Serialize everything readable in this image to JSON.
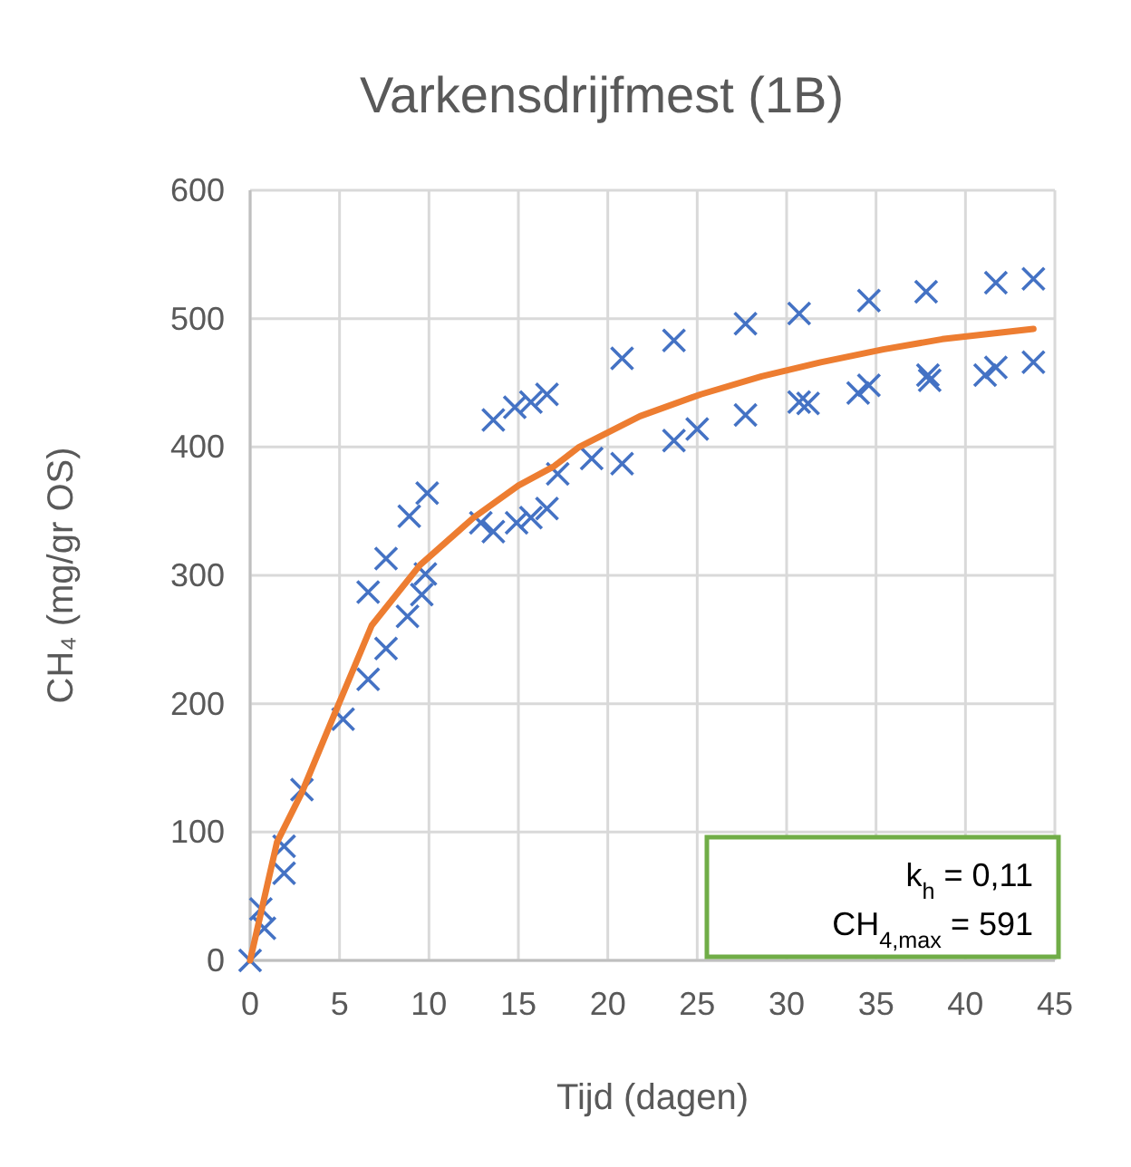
{
  "chart_data": {
    "type": "scatter",
    "title": "Varkensdrijfmest (1B)",
    "xlabel": "Tijd (dagen)",
    "ylabel": "CH₄ (mg/gr OS)",
    "xlim": [
      0,
      45
    ],
    "xticks": [
      0,
      5,
      10,
      15,
      20,
      25,
      30,
      35,
      40,
      45
    ],
    "ylim": [
      0,
      600
    ],
    "yticks": [
      0,
      100,
      200,
      300,
      400,
      500,
      600
    ],
    "grid": true,
    "annotations": [
      "k$_{h}$ = 0,11",
      "CH$_{4,max}$ = 591"
    ],
    "series": [
      {
        "marker": "cross",
        "color": "#4472c4",
        "x": [
          0,
          0.6,
          0.8,
          1.9,
          1.9,
          2.9,
          5.2,
          6.6,
          6.6,
          7.6,
          7.6,
          8.8,
          8.9,
          9.6,
          9.8,
          9.9,
          12.9,
          13.6,
          13.6,
          14.8,
          14.9,
          15.7,
          15.7,
          16.6,
          16.6,
          17.2,
          19.1,
          20.8,
          20.8,
          23.7,
          23.7,
          25.0,
          27.7,
          27.7,
          30.7,
          30.7,
          31.2,
          34.0,
          34.6,
          34.6,
          37.8,
          37.9,
          38.0,
          41.1,
          41.7,
          41.7,
          43.8,
          43.8
        ],
        "values": [
          0,
          40,
          25,
          89,
          68,
          133,
          188,
          219,
          287,
          243,
          313,
          268,
          346,
          285,
          301,
          364,
          341,
          334,
          421,
          431,
          341,
          435,
          345,
          352,
          441,
          379,
          391,
          387,
          469,
          483,
          405,
          414,
          496,
          425,
          504,
          435,
          434,
          442,
          448,
          514,
          521,
          456,
          452,
          456,
          462,
          528,
          531,
          466
        ]
      },
      {
        "type": "line",
        "marker": "none",
        "line_style": "solid",
        "color": "#ed7d31",
        "x": [
          0,
          1.5,
          2.9,
          4.6,
          6.8,
          9.5,
          12.5,
          15,
          17,
          18.4,
          21.8,
          25.2,
          28.6,
          31.9,
          35.4,
          38.7,
          43.8
        ],
        "values": [
          0,
          92,
          131,
          188,
          261,
          308,
          345,
          370,
          385,
          400,
          424,
          441,
          455,
          466,
          476,
          484,
          492
        ]
      }
    ]
  }
}
